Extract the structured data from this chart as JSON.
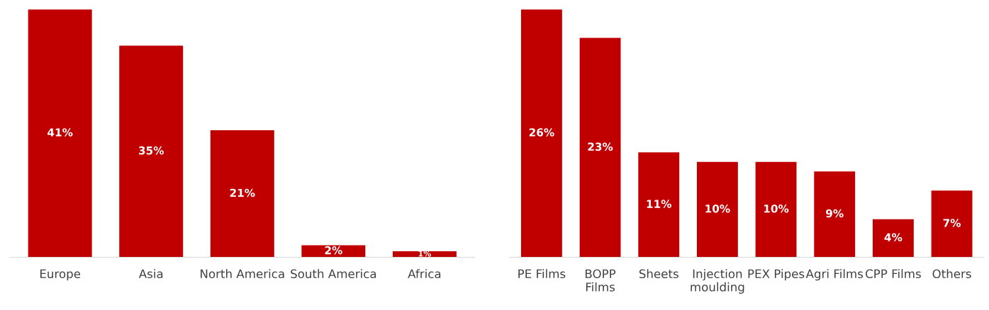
{
  "chart_data": [
    {
      "type": "bar",
      "categories": [
        "Europe",
        "Asia",
        "North America",
        "South America",
        "Africa"
      ],
      "values": [
        41,
        35,
        21,
        2,
        1
      ],
      "value_labels": [
        "41%",
        "35%",
        "21%",
        "2%",
        "1%"
      ],
      "color": "#c00000",
      "tick_labels": "x",
      "grid": false,
      "legend": false
    },
    {
      "type": "bar",
      "categories": [
        "PE Films",
        "BOPP\nFilms",
        "Sheets",
        "Injection\nmoulding",
        "PEX Pipes",
        "Agri Films",
        "CPP Films",
        "Others"
      ],
      "values": [
        26,
        23,
        11,
        10,
        10,
        9,
        4,
        7
      ],
      "value_labels": [
        "26%",
        "23%",
        "11%",
        "10%",
        "10%",
        "9%",
        "4%",
        "7%"
      ],
      "color": "#c00000",
      "tick_labels": "x",
      "grid": false,
      "legend": false
    }
  ]
}
